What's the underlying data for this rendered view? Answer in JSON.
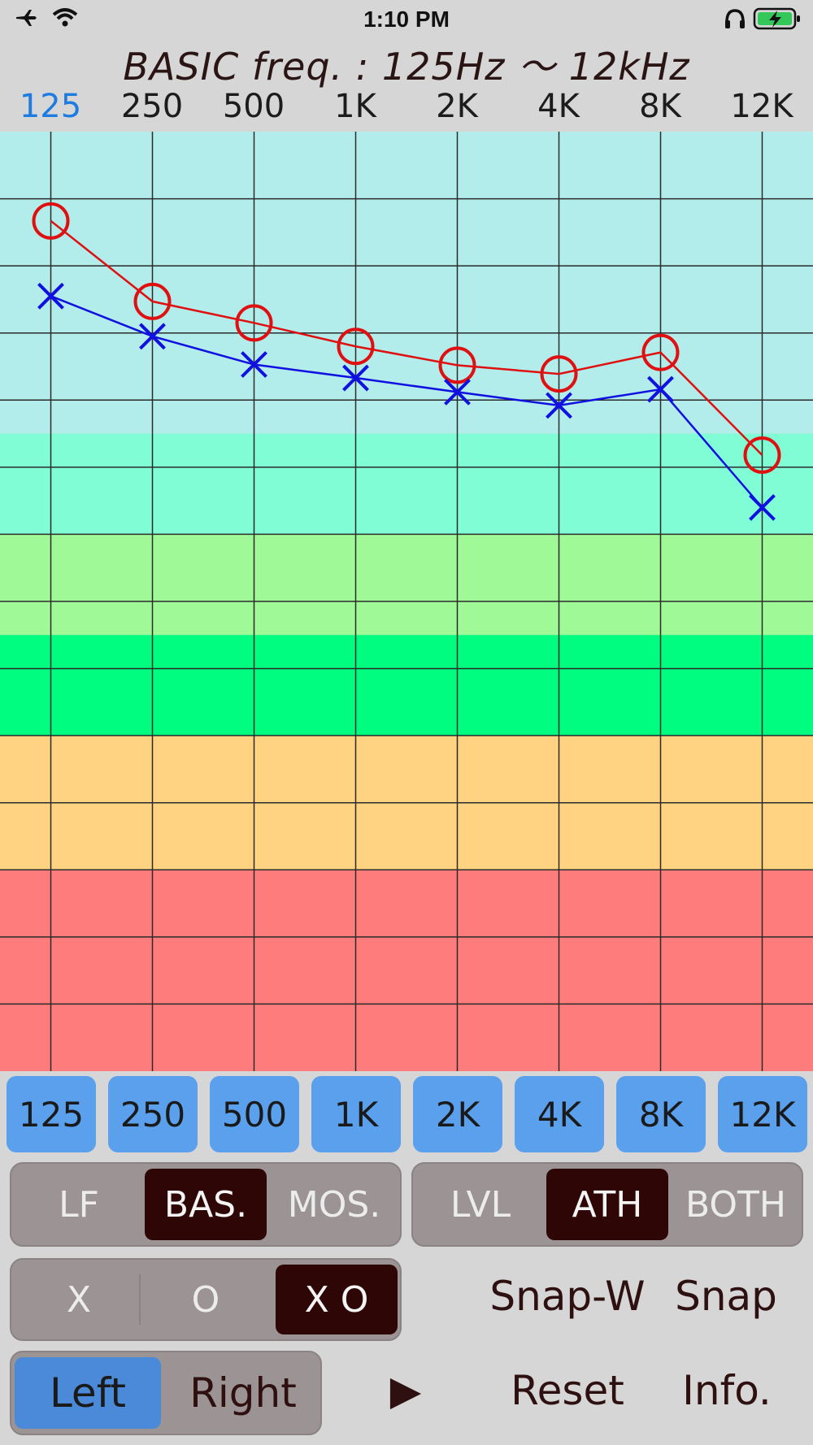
{
  "status": {
    "time": "1:10 PM"
  },
  "title": "BASIC freq. : 125Hz ～ 12kHz",
  "freq_header": [
    "125",
    "250",
    "500",
    "1K",
    "2K",
    "4K",
    "8K",
    "12K"
  ],
  "freq_buttons": [
    "125",
    "250",
    "500",
    "1K",
    "2K",
    "4K",
    "8K",
    "12K"
  ],
  "mode_toggle": {
    "options": [
      "LF",
      "BAS.",
      "MOS."
    ],
    "selected": "BAS."
  },
  "type_toggle": {
    "options": [
      "LVL",
      "ATH",
      "BOTH"
    ],
    "selected": "ATH"
  },
  "marker_toggle": {
    "options": [
      "X",
      "O",
      "X O"
    ],
    "selected": "X O"
  },
  "ear_toggle": {
    "options": [
      "Left",
      "Right"
    ],
    "selected": "Left"
  },
  "buttons": {
    "snap_w": "Snap-W",
    "snap": "Snap",
    "play": "▶",
    "reset": "Reset",
    "info": "Info."
  },
  "colors": {
    "accent": "#1e7be0",
    "button_blue": "#5aa0ec",
    "selected_dark": "#2f0606",
    "o_series": "#e01010",
    "x_series": "#1010e0",
    "bands": [
      "#b2eceb",
      "#80fdd5",
      "#9ff996",
      "#00fd80",
      "#ffd381",
      "#ff7c7c"
    ]
  },
  "chart_data": {
    "type": "line",
    "categories": [
      "125",
      "250",
      "500",
      "1K",
      "2K",
      "4K",
      "8K",
      "12K"
    ],
    "y_rows": 14,
    "y_range": [
      0,
      14
    ],
    "bands": [
      {
        "from": 0,
        "to": 4.5,
        "color": "#b2eceb"
      },
      {
        "from": 4.5,
        "to": 6,
        "color": "#80fdd5"
      },
      {
        "from": 6,
        "to": 7.5,
        "color": "#9ff996"
      },
      {
        "from": 7.5,
        "to": 9,
        "color": "#00fd80"
      },
      {
        "from": 9,
        "to": 11,
        "color": "#ffd381"
      },
      {
        "from": 11,
        "to": 14,
        "color": "#ff7c7c"
      }
    ],
    "series": [
      {
        "marker": "O",
        "color": "#e01010",
        "values": [
          1.33,
          2.53,
          2.85,
          3.2,
          3.48,
          3.61,
          3.29,
          4.82
        ]
      },
      {
        "marker": "X",
        "color": "#1010e0",
        "values": [
          2.45,
          3.05,
          3.47,
          3.67,
          3.88,
          4.08,
          3.84,
          5.6
        ]
      }
    ]
  }
}
